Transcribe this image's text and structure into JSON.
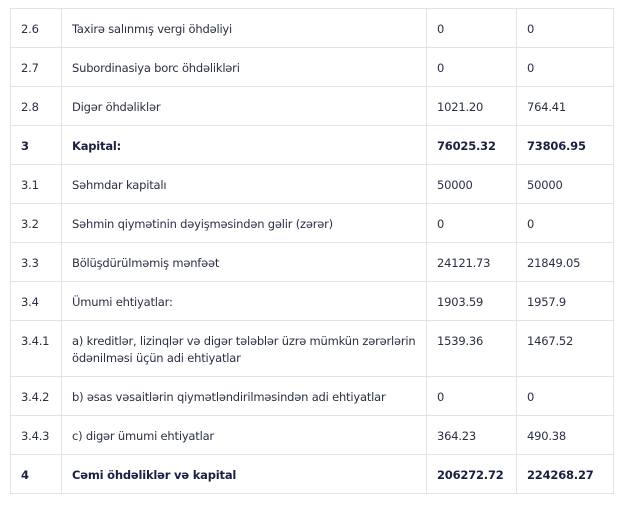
{
  "table": {
    "rows": [
      {
        "code": "2.6",
        "label": "Taxirə salınmış vergi öhdəliyi",
        "v1": "0",
        "v2": "0",
        "bold": false
      },
      {
        "code": "2.7",
        "label": "Subordinasiya borc öhdəlikləri",
        "v1": "0",
        "v2": "0",
        "bold": false
      },
      {
        "code": "2.8",
        "label": "Digər öhdəliklər",
        "v1": "1021.20",
        "v2": "764.41",
        "bold": false
      },
      {
        "code": "3",
        "label": "Kapital:",
        "v1": "76025.32",
        "v2": "73806.95",
        "bold": true
      },
      {
        "code": "3.1",
        "label": "Səhmdar kapitalı",
        "v1": "50000",
        "v2": "50000",
        "bold": false
      },
      {
        "code": "3.2",
        "label": "Səhmin qiymətinin dəyişməsindən gəlir (zərər)",
        "v1": "0",
        "v2": "0",
        "bold": false
      },
      {
        "code": "3.3",
        "label": "Bölüşdürülməmiş mənfəət",
        "v1": "24121.73",
        "v2": "21849.05",
        "bold": false
      },
      {
        "code": "3.4",
        "label": "Ümumi ehtiyatlar:",
        "v1": "1903.59",
        "v2": "1957.9",
        "bold": false
      },
      {
        "code": "3.4.1",
        "label": "a) kreditlər, lizinqlər və digər tələblər üzrə mümkün zərərlərin ödənilməsi üçün adi ehtiyatlar",
        "v1": "1539.36",
        "v2": "1467.52",
        "bold": false,
        "tall": true
      },
      {
        "code": "3.4.2",
        "label": "b) əsas vəsaitlərin qiymətləndirilməsindən adi ehtiyatlar",
        "v1": "0",
        "v2": "0",
        "bold": false
      },
      {
        "code": "3.4.3",
        "label": "c) digər ümumi ehtiyatlar",
        "v1": "364.23",
        "v2": "490.38",
        "bold": false
      },
      {
        "code": "4",
        "label": "Cəmi öhdəliklər və kapital",
        "v1": "206272.72",
        "v2": "224268.27",
        "bold": true
      }
    ]
  }
}
